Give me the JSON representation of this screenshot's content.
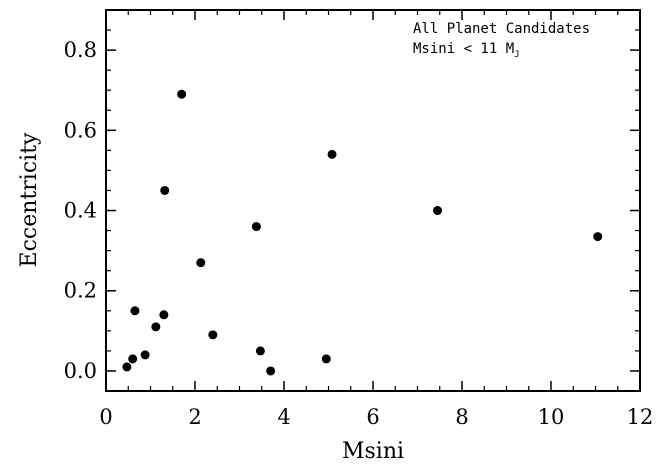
{
  "chart_data": {
    "type": "scatter",
    "title": "",
    "xlabel": "Msini",
    "ylabel": "Eccentricity",
    "xlim": [
      0,
      12
    ],
    "ylim": [
      -0.05,
      0.9
    ],
    "x_ticks": [
      0,
      2,
      4,
      6,
      8,
      10,
      12
    ],
    "x_tick_labels": [
      "0",
      "2",
      "4",
      "6",
      "8",
      "10",
      "12"
    ],
    "y_ticks": [
      0.0,
      0.2,
      0.4,
      0.6,
      0.8
    ],
    "y_tick_labels": [
      "0.0",
      "0.2",
      "0.4",
      "0.6",
      "0.8"
    ],
    "grid": false,
    "annotation": {
      "line1": "All Planet Candidates",
      "line2": "Msini < 11 M",
      "line2_subscript": "J"
    },
    "marker_color": "#000000",
    "series": [
      {
        "points": [
          {
            "x": 0.47,
            "y": 0.01
          },
          {
            "x": 0.6,
            "y": 0.03
          },
          {
            "x": 0.65,
            "y": 0.15
          },
          {
            "x": 0.88,
            "y": 0.04
          },
          {
            "x": 1.12,
            "y": 0.11
          },
          {
            "x": 1.3,
            "y": 0.14
          },
          {
            "x": 1.32,
            "y": 0.45
          },
          {
            "x": 1.7,
            "y": 0.69
          },
          {
            "x": 2.13,
            "y": 0.27
          },
          {
            "x": 2.4,
            "y": 0.09
          },
          {
            "x": 3.38,
            "y": 0.36
          },
          {
            "x": 3.47,
            "y": 0.05
          },
          {
            "x": 3.7,
            "y": 0.0
          },
          {
            "x": 4.95,
            "y": 0.03
          },
          {
            "x": 5.08,
            "y": 0.54
          },
          {
            "x": 7.45,
            "y": 0.4
          },
          {
            "x": 11.05,
            "y": 0.335
          }
        ]
      }
    ]
  }
}
